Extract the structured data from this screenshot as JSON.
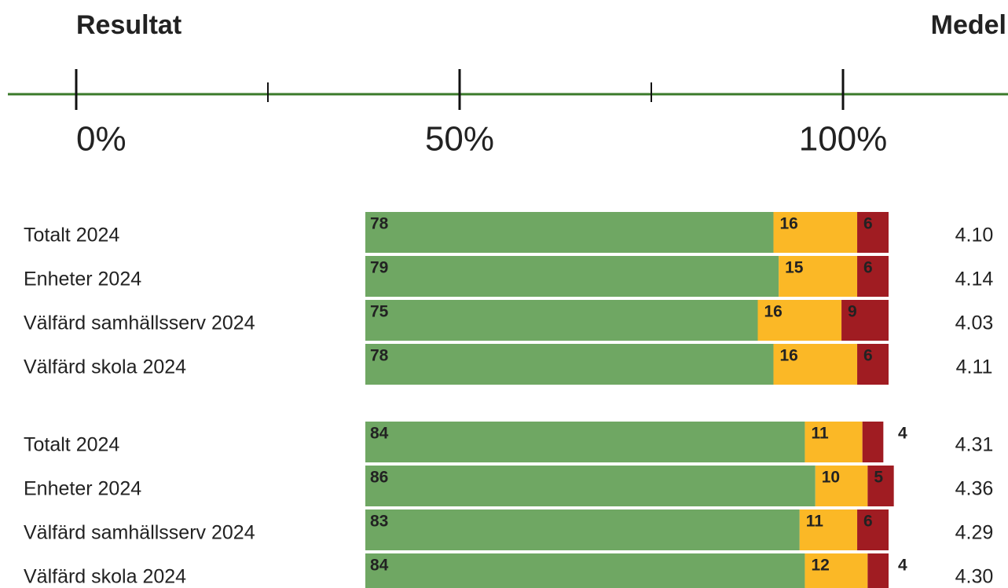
{
  "chart_data": {
    "type": "bar",
    "left_heading": "Resultat",
    "right_heading": "Medel",
    "xlim": [
      0,
      100
    ],
    "xticks": [
      {
        "value": 0,
        "label": "0%"
      },
      {
        "value": 50,
        "label": "50%"
      },
      {
        "value": 100,
        "label": "100%"
      }
    ],
    "xticks_minor": [
      25,
      75
    ],
    "groups": [
      {
        "categories": [
          "Totalt 2024",
          "Enheter 2024",
          "Välfärd samhällsserv 2024",
          "Välfärd skola 2024"
        ],
        "series": [
          {
            "color": "#6fa763",
            "values": [
              78,
              79,
              75,
              78
            ]
          },
          {
            "color": "#fbb826",
            "values": [
              16,
              15,
              16,
              16
            ]
          },
          {
            "color": "#a01c22",
            "values": [
              6,
              6,
              9,
              6
            ]
          }
        ],
        "means": {
          "values": [
            4.1,
            4.14,
            4.03,
            4.11
          ],
          "value_labels": [
            "4.10",
            "4.14",
            "4.03",
            "4.11"
          ]
        }
      },
      {
        "categories": [
          "Totalt 2024",
          "Enheter 2024",
          "Välfärd samhällsserv 2024",
          "Välfärd skola 2024"
        ],
        "series": [
          {
            "color": "#6fa763",
            "values": [
              84,
              86,
              83,
              84
            ]
          },
          {
            "color": "#fbb826",
            "values": [
              11,
              10,
              11,
              12
            ]
          },
          {
            "color": "#a01c22",
            "values": [
              4,
              5,
              6,
              4
            ]
          }
        ],
        "means": {
          "values": [
            4.31,
            4.36,
            4.29,
            4.3
          ],
          "value_labels": [
            "4.31",
            "4.36",
            "4.29",
            "4.30"
          ]
        }
      }
    ]
  }
}
